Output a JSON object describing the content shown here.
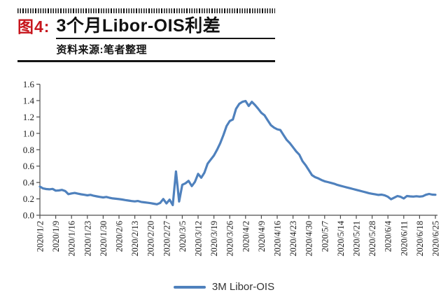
{
  "header": {
    "figure_label": "图4:",
    "title": "3个月Libor-OIS利差",
    "source": "资料来源:笔者整理"
  },
  "colors": {
    "accent_red": "#c7161d",
    "line_blue": "#4f81bd",
    "axis": "#4d4d4d",
    "text": "#1a1a1a"
  },
  "legend": {
    "label": "3M Libor-OIS"
  },
  "chart_data": {
    "type": "line",
    "title": "3个月Libor-OIS利差",
    "xlabel": "",
    "ylabel": "",
    "ylim": [
      0,
      1.6
    ],
    "grid": false,
    "legend_position": "bottom",
    "y_tick_labels": [
      "0.0",
      "0.2",
      "0.4",
      "0.6",
      "0.8",
      "1.0",
      "1.2",
      "1.4",
      "1.6"
    ],
    "y_ticks": [
      0,
      0.2,
      0.4,
      0.6,
      0.8,
      1.0,
      1.2,
      1.4,
      1.6
    ],
    "x_tick_interval": 5,
    "x_tick_labels": [
      "2020/1/2",
      "2020/1/9",
      "2020/1/16",
      "2020/1/23",
      "2020/1/30",
      "2020/2/6",
      "2020/2/13",
      "2020/2/20",
      "2020/2/27",
      "2020/3/5",
      "2020/3/12",
      "2020/3/19",
      "2020/3/26",
      "2020/4/2",
      "2020/4/9",
      "2020/4/16",
      "2020/4/23",
      "2020/4/30",
      "2020/5/7",
      "2020/5/14",
      "2020/5/21",
      "2020/5/28",
      "2020/6/4",
      "2020/6/11",
      "2020/6/18",
      "2020/6/25"
    ],
    "series": [
      {
        "name": "3M Libor-OIS",
        "values": [
          0.35,
          0.328,
          0.32,
          0.317,
          0.322,
          0.3,
          0.303,
          0.31,
          0.295,
          0.258,
          0.266,
          0.272,
          0.264,
          0.256,
          0.25,
          0.243,
          0.249,
          0.238,
          0.23,
          0.224,
          0.218,
          0.224,
          0.213,
          0.206,
          0.201,
          0.197,
          0.192,
          0.185,
          0.179,
          0.173,
          0.169,
          0.174,
          0.163,
          0.158,
          0.153,
          0.148,
          0.141,
          0.134,
          0.15,
          0.198,
          0.144,
          0.19,
          0.124,
          0.535,
          0.168,
          0.372,
          0.39,
          0.42,
          0.356,
          0.408,
          0.505,
          0.458,
          0.52,
          0.63,
          0.68,
          0.73,
          0.8,
          0.88,
          0.98,
          1.09,
          1.15,
          1.17,
          1.3,
          1.36,
          1.385,
          1.395,
          1.335,
          1.385,
          1.345,
          1.3,
          1.25,
          1.22,
          1.16,
          1.1,
          1.07,
          1.05,
          1.04,
          0.98,
          0.92,
          0.88,
          0.83,
          0.78,
          0.74,
          0.66,
          0.61,
          0.55,
          0.49,
          0.465,
          0.45,
          0.43,
          0.415,
          0.405,
          0.395,
          0.385,
          0.37,
          0.36,
          0.35,
          0.34,
          0.33,
          0.32,
          0.31,
          0.3,
          0.29,
          0.28,
          0.27,
          0.262,
          0.255,
          0.248,
          0.252,
          0.242,
          0.225,
          0.195,
          0.215,
          0.235,
          0.225,
          0.205,
          0.235,
          0.23,
          0.228,
          0.232,
          0.228,
          0.232,
          0.25,
          0.26,
          0.252,
          0.25
        ]
      }
    ]
  }
}
